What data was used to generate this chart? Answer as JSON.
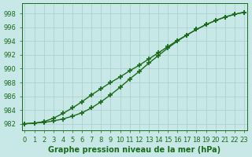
{
  "xlabel": "Graphe pression niveau de la mer (hPa)",
  "x": [
    0,
    1,
    2,
    3,
    4,
    5,
    6,
    7,
    8,
    9,
    10,
    11,
    12,
    13,
    14,
    15,
    16,
    17,
    18,
    19,
    20,
    21,
    22,
    23
  ],
  "line1": [
    982.0,
    982.1,
    982.2,
    982.4,
    982.7,
    983.1,
    983.6,
    984.3,
    985.2,
    986.2,
    987.3,
    988.5,
    989.6,
    990.8,
    991.9,
    993.0,
    994.0,
    994.9,
    995.7,
    996.4,
    997.0,
    997.5,
    997.9,
    998.2
  ],
  "line2": [
    982.0,
    982.1,
    982.3,
    982.8,
    983.5,
    984.3,
    985.2,
    986.2,
    987.1,
    988.0,
    988.8,
    989.7,
    990.5,
    991.4,
    992.3,
    993.2,
    994.1,
    994.9,
    995.7,
    996.4,
    997.0,
    997.5,
    997.9,
    998.2
  ],
  "line_color": "#1a6b1a",
  "marker_color": "#1a6b1a",
  "bg_color": "#c8e8e8",
  "grid_color": "#a8cece",
  "text_color": "#1a6b1a",
  "ylim": [
    981.0,
    999.5
  ],
  "yticks": [
    982,
    984,
    986,
    988,
    990,
    992,
    994,
    996,
    998
  ],
  "xlim": [
    -0.3,
    23.3
  ],
  "xticks": [
    0,
    1,
    2,
    3,
    4,
    5,
    6,
    7,
    8,
    9,
    10,
    11,
    12,
    13,
    14,
    15,
    16,
    17,
    18,
    19,
    20,
    21,
    22,
    23
  ],
  "marker": "+",
  "markersize": 4,
  "markeredgewidth": 1.2,
  "linewidth": 1.0,
  "xlabel_fontsize": 7,
  "tick_fontsize": 6
}
